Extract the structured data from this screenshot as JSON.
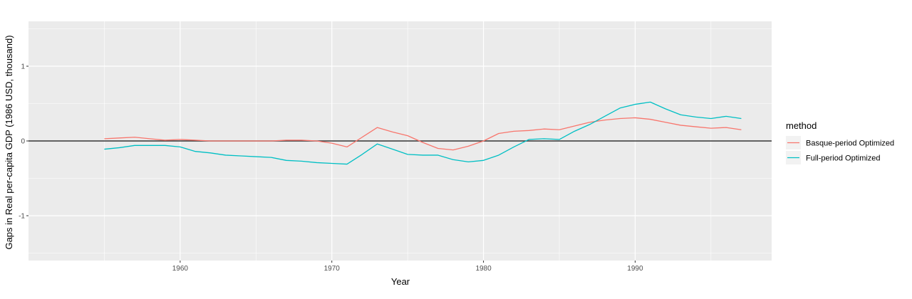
{
  "chart_data": {
    "type": "line",
    "title": "",
    "xlabel": "Year",
    "ylabel": "Gaps in Real per-capita GDP (1986 USD, thousand)",
    "xlim": [
      1950,
      1999
    ],
    "ylim": [
      -1.6,
      1.6
    ],
    "x_ticks": [
      1960,
      1970,
      1980,
      1990
    ],
    "x_tick_labels": [
      "1960",
      "1970",
      "1980",
      "1990"
    ],
    "y_ticks": [
      -1,
      0,
      1
    ],
    "y_tick_labels": [
      "-1",
      "0",
      "1"
    ],
    "reference_line": {
      "y": 0,
      "color": "#333333"
    },
    "grid": true,
    "panel_background": "#ebebeb",
    "legend": {
      "title": "method",
      "position": "right"
    },
    "series": [
      {
        "name": "Basque-period Optimized",
        "color": "#F8766D",
        "x": [
          1955,
          1956,
          1957,
          1958,
          1959,
          1960,
          1961,
          1962,
          1963,
          1964,
          1965,
          1966,
          1967,
          1968,
          1969,
          1970,
          1971,
          1972,
          1973,
          1974,
          1975,
          1976,
          1977,
          1978,
          1979,
          1980,
          1981,
          1982,
          1983,
          1984,
          1985,
          1986,
          1987,
          1988,
          1989,
          1990,
          1991,
          1992,
          1993,
          1994,
          1995,
          1996,
          1997
        ],
        "y": [
          0.03,
          0.04,
          0.05,
          0.03,
          0.01,
          0.02,
          0.01,
          0.0,
          0.0,
          0.0,
          0.0,
          0.0,
          0.01,
          0.01,
          0.0,
          -0.03,
          -0.08,
          0.05,
          0.18,
          0.12,
          0.07,
          -0.02,
          -0.1,
          -0.12,
          -0.07,
          0.0,
          0.1,
          0.13,
          0.14,
          0.16,
          0.15,
          0.2,
          0.25,
          0.28,
          0.3,
          0.31,
          0.29,
          0.25,
          0.21,
          0.19,
          0.17,
          0.18,
          0.15
        ]
      },
      {
        "name": "Full-period Optimized",
        "color": "#00BFC4",
        "x": [
          1955,
          1956,
          1957,
          1958,
          1959,
          1960,
          1961,
          1962,
          1963,
          1964,
          1965,
          1966,
          1967,
          1968,
          1969,
          1970,
          1971,
          1972,
          1973,
          1974,
          1975,
          1976,
          1977,
          1978,
          1979,
          1980,
          1981,
          1982,
          1983,
          1984,
          1985,
          1986,
          1987,
          1988,
          1989,
          1990,
          1991,
          1992,
          1993,
          1994,
          1995,
          1996,
          1997
        ],
        "y": [
          -0.11,
          -0.09,
          -0.06,
          -0.06,
          -0.06,
          -0.08,
          -0.14,
          -0.16,
          -0.19,
          -0.2,
          -0.21,
          -0.22,
          -0.26,
          -0.27,
          -0.29,
          -0.3,
          -0.31,
          -0.18,
          -0.04,
          -0.11,
          -0.18,
          -0.19,
          -0.19,
          -0.25,
          -0.28,
          -0.26,
          -0.19,
          -0.08,
          0.02,
          0.03,
          0.02,
          0.13,
          0.22,
          0.33,
          0.44,
          0.49,
          0.52,
          0.43,
          0.35,
          0.32,
          0.3,
          0.33,
          0.3
        ]
      }
    ]
  }
}
